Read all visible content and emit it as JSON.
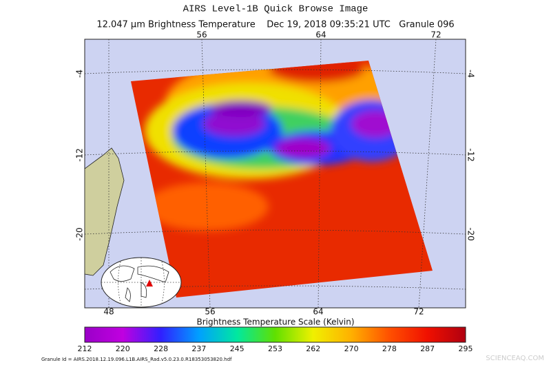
{
  "header": {
    "title": "AIRS Level-1B Quick Browse Image",
    "subtitle": "12.047 µm Brightness Temperature    Dec 19, 2018 09:35:21 UTC   Granule 096"
  },
  "map": {
    "top_lon_labels": [
      56,
      64,
      72
    ],
    "bottom_lon_labels": [
      48,
      56,
      64,
      72
    ],
    "lat_labels": [
      -4,
      -12,
      -20
    ]
  },
  "colorbar": {
    "title": "Brightness Temperature Scale (Kelvin)",
    "ticks": [
      212,
      220,
      228,
      237,
      245,
      253,
      262,
      270,
      278,
      287,
      295
    ]
  },
  "footer": {
    "granule_id": "Granule Id = AIRS.2018.12.19.096.L1B.AIRS_Rad.v5.0.23.0.R18353053820.hdf",
    "watermark": "SCIENCEAQ.COM"
  }
}
